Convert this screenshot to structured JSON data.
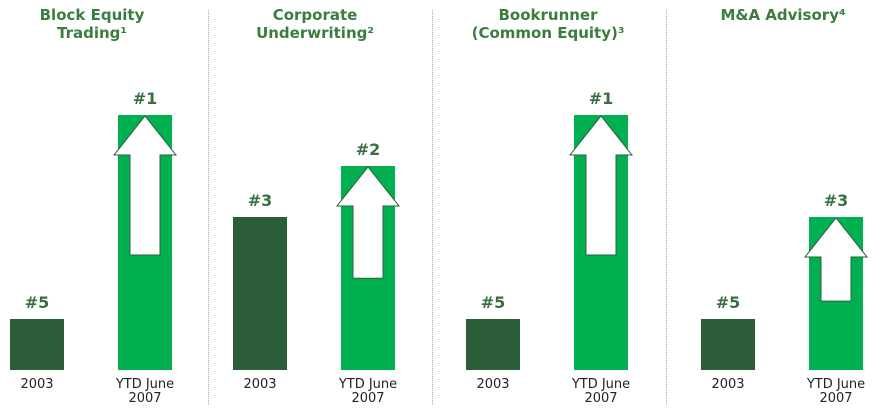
{
  "chart_data": [
    {
      "type": "bar",
      "title": "Block Equity Trading¹",
      "categories": [
        "2003",
        "YTD June 2007"
      ],
      "values": [
        5,
        1
      ],
      "value_labels": [
        "#5",
        "#1"
      ],
      "colors": [
        "#2d5e3a",
        "#00b050"
      ]
    },
    {
      "type": "bar",
      "title": "Corporate Underwriting²",
      "categories": [
        "2003",
        "YTD June 2007"
      ],
      "values": [
        3,
        2
      ],
      "value_labels": [
        "#3",
        "#2"
      ],
      "colors": [
        "#2d5e3a",
        "#00b050"
      ]
    },
    {
      "type": "bar",
      "title": "Bookrunner (Common Equity)³",
      "categories": [
        "2003",
        "YTD June 2007"
      ],
      "values": [
        5,
        1
      ],
      "value_labels": [
        "#5",
        "#1"
      ],
      "colors": [
        "#2d5e3a",
        "#00b050"
      ]
    },
    {
      "type": "bar",
      "title": "M&A Advisory⁴",
      "categories": [
        "2003",
        "YTD June 2007"
      ],
      "values": [
        5,
        3
      ],
      "value_labels": [
        "#5",
        "#3"
      ],
      "colors": [
        "#2d5e3a",
        "#00b050"
      ]
    }
  ]
}
